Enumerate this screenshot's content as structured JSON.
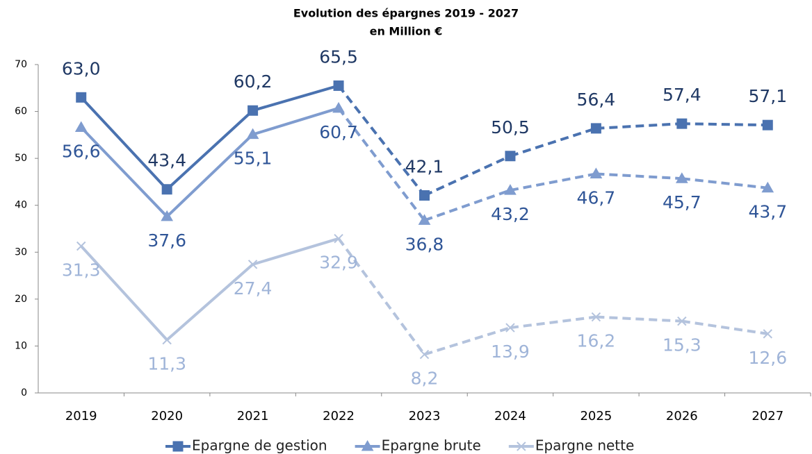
{
  "chart_data": {
    "type": "line",
    "title": "Evolution des épargnes 2019 - 2027",
    "subtitle": "en Million €",
    "categories": [
      "2019",
      "2020",
      "2021",
      "2022",
      "2023",
      "2024",
      "2025",
      "2026",
      "2027"
    ],
    "dashed_after": "2022",
    "ylim": [
      0,
      70
    ],
    "yticks": [
      0,
      10,
      20,
      30,
      40,
      50,
      60,
      70
    ],
    "grid": false,
    "legend": "bottom",
    "series": [
      {
        "name": "Epargne de gestion",
        "color": "#4a72b0",
        "label_color": "#1f3864",
        "marker": "square",
        "values": [
          63.0,
          43.4,
          60.2,
          65.5,
          42.1,
          50.5,
          56.4,
          57.4,
          57.1
        ],
        "value_labels": [
          "63,0",
          "43,4",
          "60,2",
          "65,5",
          "42,1",
          "50,5",
          "56,4",
          "57,4",
          "57,1"
        ],
        "label_side": "above"
      },
      {
        "name": "Epargne brute",
        "color": "#7f9ccf",
        "label_color": "#2f5597",
        "marker": "triangle",
        "values": [
          56.6,
          37.6,
          55.1,
          60.7,
          36.8,
          43.2,
          46.7,
          45.7,
          43.7
        ],
        "value_labels": [
          "56,6",
          "37,6",
          "55,1",
          "60,7",
          "36,8",
          "43,2",
          "46,7",
          "45,7",
          "43,7"
        ],
        "label_side": "below"
      },
      {
        "name": "Epargne nette",
        "color": "#b4c3dd",
        "label_color": "#9fb4d8",
        "marker": "x",
        "values": [
          31.3,
          11.3,
          27.4,
          32.9,
          8.2,
          13.9,
          16.2,
          15.3,
          12.6
        ],
        "value_labels": [
          "31,3",
          "11,3",
          "27,4",
          "32,9",
          "8,2",
          "13,9",
          "16,2",
          "15,3",
          "12,6"
        ],
        "label_side": "below"
      }
    ]
  }
}
